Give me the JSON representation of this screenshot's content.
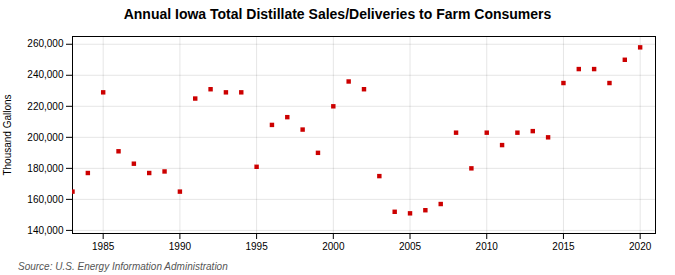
{
  "chart_data": {
    "type": "scatter",
    "title": "Annual Iowa Total Distillate Sales/Deliveries to Farm Consumers",
    "ylabel": "Thousand Gallons",
    "annotations": [
      "Source: U.S. Energy Information Administration"
    ],
    "x": [
      1983,
      1984,
      1985,
      1986,
      1987,
      1988,
      1989,
      1990,
      1991,
      1992,
      1993,
      1994,
      1995,
      1996,
      1997,
      1998,
      1999,
      2000,
      2001,
      2002,
      2003,
      2004,
      2005,
      2006,
      2007,
      2008,
      2009,
      2010,
      2011,
      2012,
      2013,
      2014,
      2015,
      2016,
      2017,
      2018,
      2019,
      2020
    ],
    "values": [
      165000,
      177000,
      229000,
      191000,
      183000,
      177000,
      178000,
      165000,
      225000,
      231000,
      229000,
      229000,
      181000,
      208000,
      213000,
      205000,
      190000,
      220000,
      236000,
      231000,
      175000,
      152000,
      151000,
      153000,
      157000,
      203000,
      180000,
      203000,
      195000,
      203000,
      204000,
      200000,
      235000,
      244000,
      244000,
      235000,
      250000,
      258000
    ],
    "color": "#cc0000",
    "marker": "square",
    "xlim": [
      1983,
      2021
    ],
    "ylim": [
      138000,
      265000
    ],
    "xticks": [
      1985,
      1990,
      1995,
      2000,
      2005,
      2010,
      2015,
      2020
    ],
    "yticks": [
      {
        "value": 140000,
        "label": "140,000"
      },
      {
        "value": 160000,
        "label": "160,000"
      },
      {
        "value": 180000,
        "label": "180,000"
      },
      {
        "value": 200000,
        "label": "200,000"
      },
      {
        "value": 220000,
        "label": "220,000"
      },
      {
        "value": 240000,
        "label": "240,000"
      },
      {
        "value": 260000,
        "label": "260,000"
      }
    ],
    "grid": true
  }
}
